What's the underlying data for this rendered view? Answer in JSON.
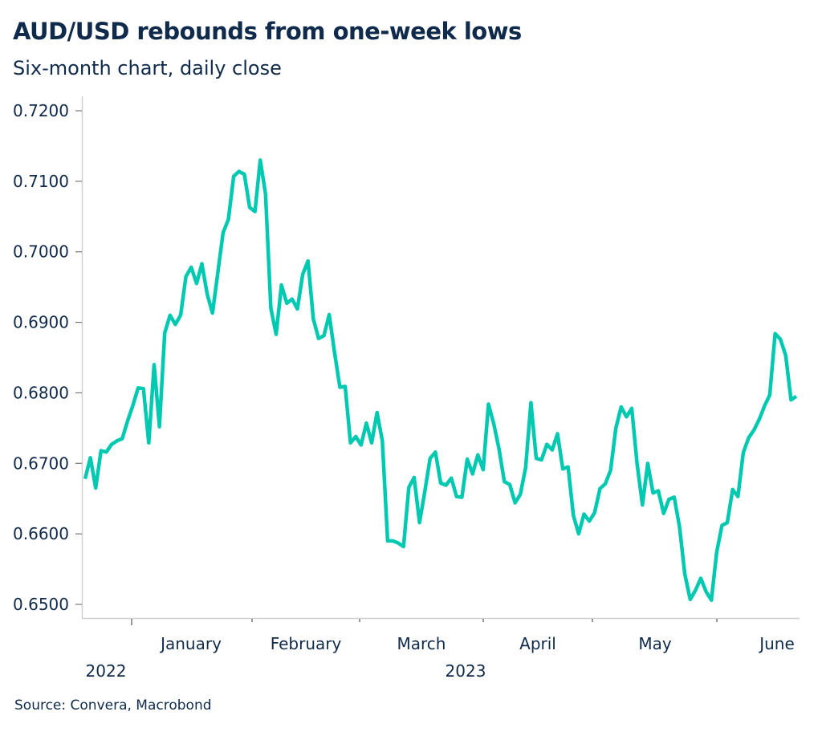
{
  "chart_data": {
    "type": "line",
    "title": "AUD/USD rebounds from one-week lows",
    "subtitle": "Six-month chart, daily close",
    "source": "Source: Convera, Macrobond",
    "xlabel": "",
    "ylabel": "",
    "ylim": [
      0.65,
      0.72
    ],
    "y_ticks": [
      "0.7200",
      "0.7100",
      "0.7000",
      "0.6900",
      "0.6800",
      "0.6700",
      "0.6600",
      "0.6500"
    ],
    "y_tick_values": [
      0.72,
      0.71,
      0.7,
      0.69,
      0.68,
      0.67,
      0.66,
      0.65
    ],
    "x_month_labels": [
      "January",
      "February",
      "March",
      "April",
      "May",
      "June"
    ],
    "x_year_labels": [
      "2022",
      "2023"
    ],
    "grid": false,
    "line_color": "#00c9b1",
    "text_color": "#0f2a4a",
    "series": [
      {
        "name": "AUD/USD",
        "x_index_start": 0,
        "values": [
          0.6678,
          0.6708,
          0.6665,
          0.6718,
          0.6716,
          0.6727,
          0.6732,
          0.6735,
          0.676,
          0.6782,
          0.6807,
          0.6806,
          0.6729,
          0.684,
          0.6752,
          0.6885,
          0.691,
          0.6897,
          0.691,
          0.6965,
          0.6978,
          0.6955,
          0.6983,
          0.694,
          0.6913,
          0.697,
          0.7027,
          0.7046,
          0.7107,
          0.7114,
          0.711,
          0.7063,
          0.7057,
          0.713,
          0.7082,
          0.692,
          0.6883,
          0.6953,
          0.6927,
          0.6933,
          0.6919,
          0.6968,
          0.6987,
          0.6905,
          0.6877,
          0.6881,
          0.6911,
          0.6857,
          0.6808,
          0.6809,
          0.6729,
          0.6738,
          0.6726,
          0.6757,
          0.6729,
          0.6772,
          0.6732,
          0.659,
          0.659,
          0.6587,
          0.6582,
          0.6666,
          0.668,
          0.6616,
          0.666,
          0.6707,
          0.6716,
          0.6672,
          0.6669,
          0.6679,
          0.6653,
          0.6652,
          0.6706,
          0.6685,
          0.6712,
          0.6691,
          0.6784,
          0.6756,
          0.672,
          0.6674,
          0.667,
          0.6644,
          0.6656,
          0.6694,
          0.6786,
          0.6707,
          0.6705,
          0.6727,
          0.6719,
          0.6742,
          0.6692,
          0.6695,
          0.6626,
          0.66,
          0.6628,
          0.6618,
          0.663,
          0.6664,
          0.6671,
          0.669,
          0.675,
          0.678,
          0.6766,
          0.6778,
          0.67,
          0.6641,
          0.67,
          0.6658,
          0.6661,
          0.6629,
          0.6649,
          0.6652,
          0.661,
          0.6543,
          0.6507,
          0.652,
          0.6537,
          0.6518,
          0.6506,
          0.6574,
          0.6612,
          0.6616,
          0.6663,
          0.6653,
          0.6715,
          0.6736,
          0.6747,
          0.6762,
          0.6781,
          0.6797,
          0.6884,
          0.6876,
          0.6853,
          0.679,
          0.6795
        ]
      }
    ]
  }
}
